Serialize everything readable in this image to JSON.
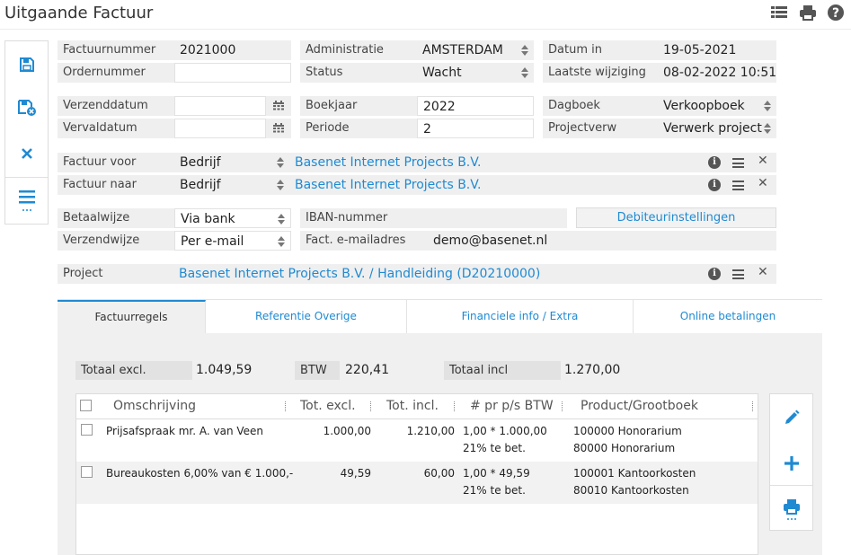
{
  "page": {
    "title": "Uitgaande Factuur"
  },
  "header_icons": [
    "grid-view-icon",
    "print-icon",
    "help-icon"
  ],
  "left_toolbar": {
    "items": [
      "save-icon",
      "save-close-icon",
      "close-icon",
      "menu-icon"
    ]
  },
  "fields": {
    "factuurnummer": {
      "label": "Factuurnummer",
      "value": "2021000"
    },
    "ordernummer": {
      "label": "Ordernummer",
      "value": ""
    },
    "administratie": {
      "label": "Administratie",
      "value": "AMSTERDAM"
    },
    "status": {
      "label": "Status",
      "value": "Wacht"
    },
    "datum_in": {
      "label": "Datum in",
      "value": "19-05-2021"
    },
    "laatste_wijziging": {
      "label": "Laatste wijziging",
      "value": "08-02-2022 10:51"
    },
    "verzenddatum": {
      "label": "Verzenddatum",
      "value": ""
    },
    "vervaldatum": {
      "label": "Vervaldatum",
      "value": ""
    },
    "boekjaar": {
      "label": "Boekjaar",
      "value": "2022"
    },
    "periode": {
      "label": "Periode",
      "value": "2"
    },
    "dagboek": {
      "label": "Dagboek",
      "value": "Verkoopboek"
    },
    "projectverw": {
      "label": "Projectverw",
      "value": "Verwerk project"
    },
    "factuur_voor": {
      "label": "Factuur voor",
      "type": "Bedrijf",
      "value": "Basenet Internet Projects B.V."
    },
    "factuur_naar": {
      "label": "Factuur naar",
      "type": "Bedrijf",
      "value": "Basenet Internet Projects B.V."
    },
    "betaalwijze": {
      "label": "Betaalwijze",
      "value": "Via bank"
    },
    "verzendwijze": {
      "label": "Verzendwijze",
      "value": "Per e-mail"
    },
    "iban": {
      "label": "IBAN-nummer",
      "value": ""
    },
    "fact_email": {
      "label": "Fact. e-mailadres",
      "value": "demo@basenet.nl"
    },
    "project": {
      "label": "Project",
      "value": "Basenet Internet Projects B.V. / Handleiding  (D20210000)"
    }
  },
  "debiteur_button": "Debiteurinstellingen",
  "tabs": [
    {
      "label": "Factuurregels",
      "active": true
    },
    {
      "label": "Referentie Overige",
      "active": false
    },
    {
      "label": "Financiele info / Extra",
      "active": false
    },
    {
      "label": "Online betalingen",
      "active": false
    }
  ],
  "totals": {
    "excl": {
      "label": "Totaal excl.",
      "value": "1.049,59"
    },
    "btw": {
      "label": "BTW",
      "value": "220,41"
    },
    "incl": {
      "label": "Totaal incl",
      "value": "1.270,00"
    }
  },
  "grid": {
    "columns": [
      "Omschrijving",
      "Tot. excl.",
      "Tot. incl.",
      "# pr p/s BTW",
      "Product/Grootboek"
    ],
    "rows": [
      {
        "omschrijving": "Prijsafspraak mr. A. van Veen",
        "excl": "1.000,00",
        "incl": "1.210,00",
        "pr1": "1,00 * 1.000,00",
        "pr2": "21% te bet.",
        "pg1": "100000 Honorarium",
        "pg2": "80000 Honorarium"
      },
      {
        "omschrijving": "Bureaukosten 6,00% van € 1.000,-",
        "excl": "49,59",
        "incl": "60,00",
        "pr1": "1,00 * 49,59",
        "pr2": "21% te bet.",
        "pg1": "100001 Kantoorkosten",
        "pg2": "80010 Kantoorkosten"
      }
    ]
  },
  "right_toolbar": {
    "items": [
      "edit-icon",
      "add-icon",
      "print-icon"
    ]
  },
  "colors": {
    "accent": "#1f8ad2",
    "field_bg": "#efefef",
    "panel_bg": "#f0f0f0"
  }
}
